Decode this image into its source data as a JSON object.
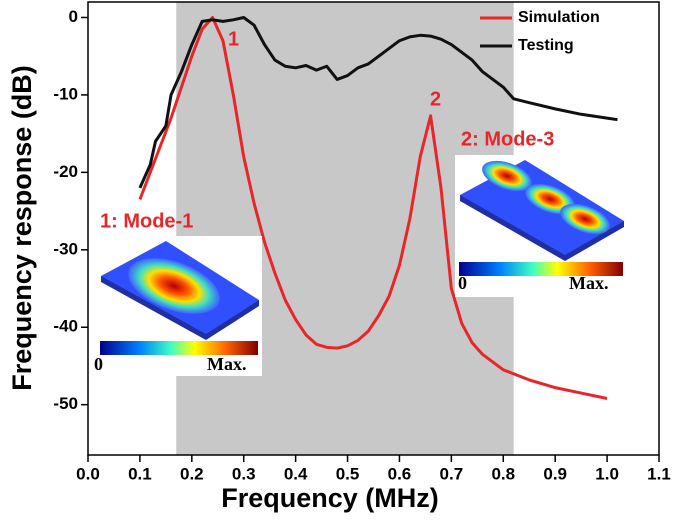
{
  "chart_data": {
    "type": "line",
    "x_label": "Frequency (MHz)",
    "y_label": "Frequency response (dB)",
    "xlim": [
      0,
      1.1
    ],
    "ylim": [
      -56.5,
      2
    ],
    "xticks": [
      {
        "value": 0,
        "label": "0.0"
      },
      0.1,
      0.2,
      0.3,
      0.4,
      0.5,
      0.6,
      0.7,
      0.8,
      0.9,
      {
        "value": 1,
        "label": "1.0"
      },
      1.1
    ],
    "yticks": [
      0,
      -10,
      -20,
      -30,
      -40,
      -50
    ],
    "shaded_region": [
      0.17,
      0.82
    ],
    "legend": "upper right",
    "series": [
      {
        "name": "Simulation",
        "color": "#e8262a",
        "x": [
          0.1,
          0.12,
          0.14,
          0.16,
          0.18,
          0.2,
          0.22,
          0.24,
          0.26,
          0.28,
          0.3,
          0.32,
          0.34,
          0.36,
          0.38,
          0.4,
          0.42,
          0.44,
          0.46,
          0.48,
          0.5,
          0.52,
          0.54,
          0.56,
          0.58,
          0.6,
          0.62,
          0.64,
          0.66,
          0.68,
          0.7,
          0.72,
          0.74,
          0.76,
          0.8,
          0.85,
          0.9,
          0.95,
          1.0
        ],
        "values": [
          -23.5,
          -20,
          -16.5,
          -13,
          -9,
          -5,
          -1.5,
          0,
          -3,
          -10,
          -18,
          -24,
          -29,
          -33,
          -36.5,
          -39,
          -41,
          -42.2,
          -42.6,
          -42.7,
          -42.4,
          -41.7,
          -40.5,
          -38.5,
          -36,
          -32,
          -26,
          -18,
          -12.7,
          -22,
          -35,
          -39.5,
          -42,
          -43.5,
          -45.5,
          -46.8,
          -47.8,
          -48.5,
          -49.2
        ]
      },
      {
        "name": "Testing",
        "color": "#111111",
        "x": [
          0.1,
          0.12,
          0.13,
          0.15,
          0.16,
          0.18,
          0.2,
          0.22,
          0.24,
          0.26,
          0.28,
          0.3,
          0.32,
          0.34,
          0.36,
          0.38,
          0.4,
          0.42,
          0.44,
          0.46,
          0.48,
          0.5,
          0.52,
          0.54,
          0.56,
          0.58,
          0.6,
          0.62,
          0.64,
          0.66,
          0.68,
          0.7,
          0.72,
          0.74,
          0.76,
          0.78,
          0.8,
          0.82,
          0.85,
          0.9,
          0.95,
          1.0,
          1.02
        ],
        "values": [
          -22,
          -19,
          -16,
          -14,
          -10,
          -7,
          -3.5,
          -0.5,
          -0.3,
          -0.5,
          -0.3,
          0,
          -1,
          -3.5,
          -5.5,
          -6.3,
          -6.5,
          -6.2,
          -6.8,
          -6.3,
          -8,
          -7.5,
          -6.5,
          -6,
          -5,
          -4,
          -3,
          -2.5,
          -2.3,
          -2.4,
          -2.8,
          -3.5,
          -4.5,
          -5.5,
          -7,
          -8,
          -9,
          -10.5,
          -11,
          -11.8,
          -12.5,
          -13,
          -13.2
        ]
      }
    ],
    "annotations": [
      "1",
      "2",
      "1: Mode-1",
      "2: Mode-3",
      "0",
      "Max.",
      "0",
      "Max."
    ]
  }
}
